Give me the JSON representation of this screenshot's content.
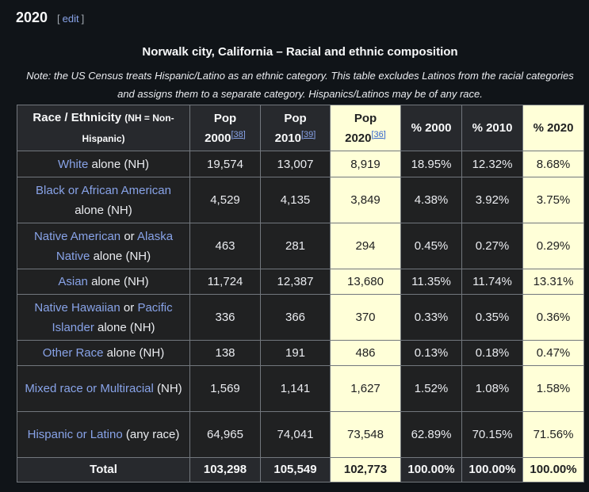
{
  "heading": {
    "title": "2020",
    "edit_open": "[",
    "edit_label": "edit",
    "edit_close": "]"
  },
  "caption": {
    "title": "Norwalk city, California – Racial and ethnic composition",
    "note": "Note: the US Census treats Hispanic/Latino as an ethnic category. This table excludes Latinos from the racial categories and assigns them to a separate category. Hispanics/Latinos may be of any race."
  },
  "header": {
    "race_label": "Race / Ethnicity",
    "race_note": "(NH = Non-Hispanic)",
    "pop2000": "Pop 2000",
    "pop2000_ref": "[38]",
    "pop2010": "Pop 2010",
    "pop2010_ref": "[39]",
    "pop2020": "Pop 2020",
    "pop2020_ref": "[36]",
    "pct2000": "% 2000",
    "pct2010": "% 2010",
    "pct2020": "% 2020"
  },
  "rows": [
    {
      "link1": "White",
      "sep": "",
      "link2": "",
      "suffix": " alone (NH)",
      "pop2000": "19,574",
      "pop2010": "13,007",
      "pop2020": "8,919",
      "pct2000": "18.95%",
      "pct2010": "12.32%",
      "pct2020": "8.68%"
    },
    {
      "link1": "Black or African American",
      "sep": "",
      "link2": "",
      "suffix": " alone (NH)",
      "pop2000": "4,529",
      "pop2010": "4,135",
      "pop2020": "3,849",
      "pct2000": "4.38%",
      "pct2010": "3.92%",
      "pct2020": "3.75%"
    },
    {
      "link1": "Native American",
      "sep": " or ",
      "link2": "Alaska Native",
      "suffix": " alone (NH)",
      "pop2000": "463",
      "pop2010": "281",
      "pop2020": "294",
      "pct2000": "0.45%",
      "pct2010": "0.27%",
      "pct2020": "0.29%"
    },
    {
      "link1": "Asian",
      "sep": "",
      "link2": "",
      "suffix": " alone (NH)",
      "pop2000": "11,724",
      "pop2010": "12,387",
      "pop2020": "13,680",
      "pct2000": "11.35%",
      "pct2010": "11.74%",
      "pct2020": "13.31%"
    },
    {
      "link1": "Native Hawaiian",
      "sep": " or ",
      "link2": "Pacific Islander",
      "suffix": " alone (NH)",
      "pop2000": "336",
      "pop2010": "366",
      "pop2020": "370",
      "pct2000": "0.33%",
      "pct2010": "0.35%",
      "pct2020": "0.36%"
    },
    {
      "link1": "Other Race",
      "sep": "",
      "link2": "",
      "suffix": " alone (NH)",
      "pop2000": "138",
      "pop2010": "191",
      "pop2020": "486",
      "pct2000": "0.13%",
      "pct2010": "0.18%",
      "pct2020": "0.47%"
    },
    {
      "link1": "Mixed race or Multiracial",
      "sep": "",
      "link2": "",
      "suffix": " (NH)",
      "pop2000": "1,569",
      "pop2010": "1,141",
      "pop2020": "1,627",
      "pct2000": "1.52%",
      "pct2010": "1.08%",
      "pct2020": "1.58%"
    },
    {
      "link1": "Hispanic or Latino",
      "sep": "",
      "link2": "",
      "suffix": " (any race)",
      "pop2000": "64,965",
      "pop2010": "74,041",
      "pop2020": "73,548",
      "pct2000": "62.89%",
      "pct2010": "70.15%",
      "pct2020": "71.56%"
    }
  ],
  "total": {
    "label": "Total",
    "pop2000": "103,298",
    "pop2010": "105,549",
    "pop2020": "102,773",
    "pct2000": "100.00%",
    "pct2010": "100.00%",
    "pct2020": "100.00%"
  },
  "colors": {
    "background": "#101418",
    "cell_background": "#202122",
    "header_background": "#27292d",
    "highlight_background": "#ffffd8",
    "link": "#88a3e8",
    "border": "#72777d"
  }
}
